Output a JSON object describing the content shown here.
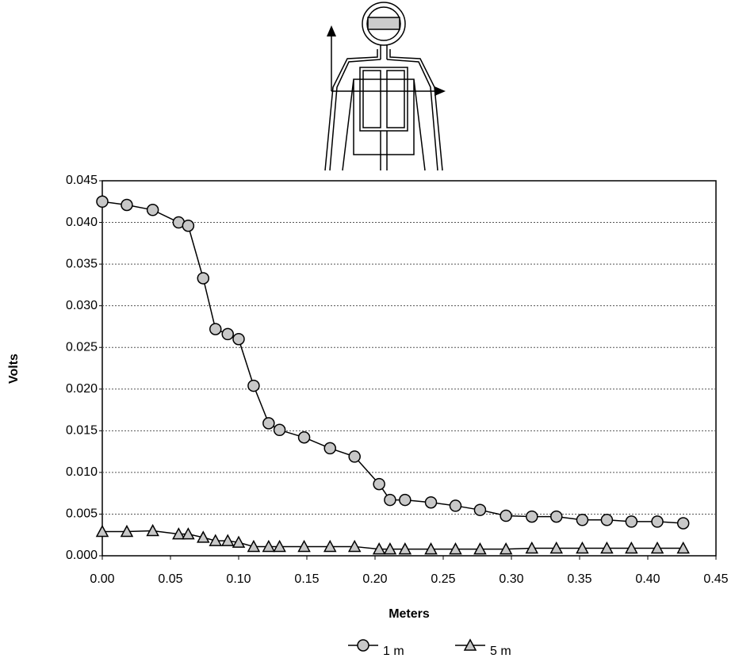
{
  "chart_data": {
    "type": "line",
    "x_label": "Meters",
    "y_label": "Volts",
    "xlim": [
      0,
      0.45
    ],
    "xticks": [
      {
        "value": 0,
        "label": "0.00"
      },
      {
        "value": 0.05,
        "label": "0.05"
      },
      {
        "value": 0.1,
        "label": "0.10"
      },
      {
        "value": 0.15,
        "label": "0.15"
      },
      {
        "value": 0.2,
        "label": "0.20"
      },
      {
        "value": 0.25,
        "label": "0.25"
      },
      {
        "value": 0.3,
        "label": "0.30"
      },
      {
        "value": 0.35,
        "label": "0.35"
      },
      {
        "value": 0.4,
        "label": "0.40"
      },
      {
        "value": 0.45,
        "label": "0.45"
      }
    ],
    "ylim": [
      0,
      0.045
    ],
    "yticks": [
      {
        "value": 0,
        "label": "0.000"
      },
      {
        "value": 0.005,
        "label": "0.005"
      },
      {
        "value": 0.01,
        "label": "0.010"
      },
      {
        "value": 0.015,
        "label": "0.015"
      },
      {
        "value": 0.02,
        "label": "0.020"
      },
      {
        "value": 0.025,
        "label": "0.025"
      },
      {
        "value": 0.03,
        "label": "0.030"
      },
      {
        "value": 0.035,
        "label": "0.035"
      },
      {
        "value": 0.04,
        "label": "0.040"
      },
      {
        "value": 0.045,
        "label": "0.045"
      }
    ],
    "grid": true,
    "legend": "bottom",
    "x": [
      0,
      0.018,
      0.037,
      0.056,
      0.063,
      0.074,
      0.083,
      0.092,
      0.1,
      0.111,
      0.122,
      0.13,
      0.148,
      0.167,
      0.185,
      0.203,
      0.211,
      0.222,
      0.241,
      0.259,
      0.277,
      0.296,
      0.315,
      0.333,
      0.352,
      0.37,
      0.388,
      0.407,
      0.426
    ],
    "series": [
      {
        "name": "1 m",
        "color": "#000000",
        "marker": "circle",
        "values": [
          0.0425,
          0.0421,
          0.0415,
          0.04,
          0.0396,
          0.0333,
          0.0272,
          0.0266,
          0.026,
          0.0204,
          0.0159,
          0.0151,
          0.0142,
          0.0129,
          0.0119,
          0.0086,
          0.0067,
          0.0067,
          0.0064,
          0.006,
          0.0055,
          0.0048,
          0.0047,
          0.0047,
          0.0043,
          0.0043,
          0.0041,
          0.0041,
          0.0039
        ]
      },
      {
        "name": "5 m",
        "color": "#000000",
        "marker": "triangle",
        "values": [
          0.0029,
          0.0029,
          0.003,
          0.0026,
          0.0026,
          0.0022,
          0.0018,
          0.0018,
          0.0016,
          0.0011,
          0.0011,
          0.0011,
          0.0011,
          0.0011,
          0.0011,
          0.0008,
          0.0008,
          0.0008,
          0.0008,
          0.0008,
          0.0008,
          0.0008,
          0.0009,
          0.0009,
          0.0009,
          0.0009,
          0.0009,
          0.0009,
          0.0009
        ]
      }
    ]
  }
}
